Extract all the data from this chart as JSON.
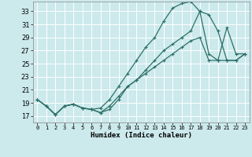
{
  "title": "",
  "xlabel": "Humidex (Indice chaleur)",
  "bg_color": "#cce9ec",
  "grid_color": "#ffffff",
  "line_color": "#2d7068",
  "xlim": [
    -0.5,
    23.5
  ],
  "ylim": [
    16,
    34.5
  ],
  "xticks": [
    0,
    1,
    2,
    3,
    4,
    5,
    6,
    7,
    8,
    9,
    10,
    11,
    12,
    13,
    14,
    15,
    16,
    17,
    18,
    19,
    20,
    21,
    22,
    23
  ],
  "yticks": [
    17,
    19,
    21,
    23,
    25,
    27,
    29,
    31,
    33
  ],
  "series1_x": [
    0,
    1,
    2,
    3,
    4,
    5,
    6,
    7,
    8,
    9,
    10,
    11,
    12,
    13,
    14,
    15,
    16,
    17,
    18,
    19,
    20,
    21,
    22,
    23
  ],
  "series1_y": [
    19.5,
    18.5,
    17.2,
    18.5,
    18.8,
    18.2,
    18.0,
    18.2,
    19.5,
    21.5,
    23.5,
    25.5,
    27.5,
    29.0,
    31.5,
    33.5,
    34.2,
    34.5,
    33.0,
    26.5,
    25.5,
    30.5,
    26.5,
    26.5
  ],
  "series2_x": [
    0,
    1,
    2,
    3,
    4,
    5,
    6,
    7,
    8,
    9,
    10,
    11,
    12,
    13,
    14,
    15,
    16,
    17,
    18,
    19,
    20,
    21,
    22,
    23
  ],
  "series2_y": [
    19.5,
    18.5,
    17.2,
    18.5,
    18.8,
    18.2,
    18.0,
    17.5,
    18.0,
    19.5,
    21.5,
    22.5,
    24.0,
    25.5,
    27.0,
    28.0,
    29.0,
    30.0,
    33.0,
    32.5,
    30.0,
    25.5,
    25.5,
    26.5
  ],
  "series3_x": [
    0,
    1,
    2,
    3,
    4,
    5,
    6,
    7,
    8,
    9,
    10,
    11,
    12,
    13,
    14,
    15,
    16,
    17,
    18,
    19,
    20,
    21,
    22,
    23
  ],
  "series3_y": [
    19.5,
    18.5,
    17.2,
    18.5,
    18.8,
    18.2,
    18.0,
    17.5,
    18.5,
    20.0,
    21.5,
    22.5,
    23.5,
    24.5,
    25.5,
    26.5,
    27.5,
    28.5,
    29.0,
    25.5,
    25.5,
    25.5,
    25.5,
    26.5
  ]
}
